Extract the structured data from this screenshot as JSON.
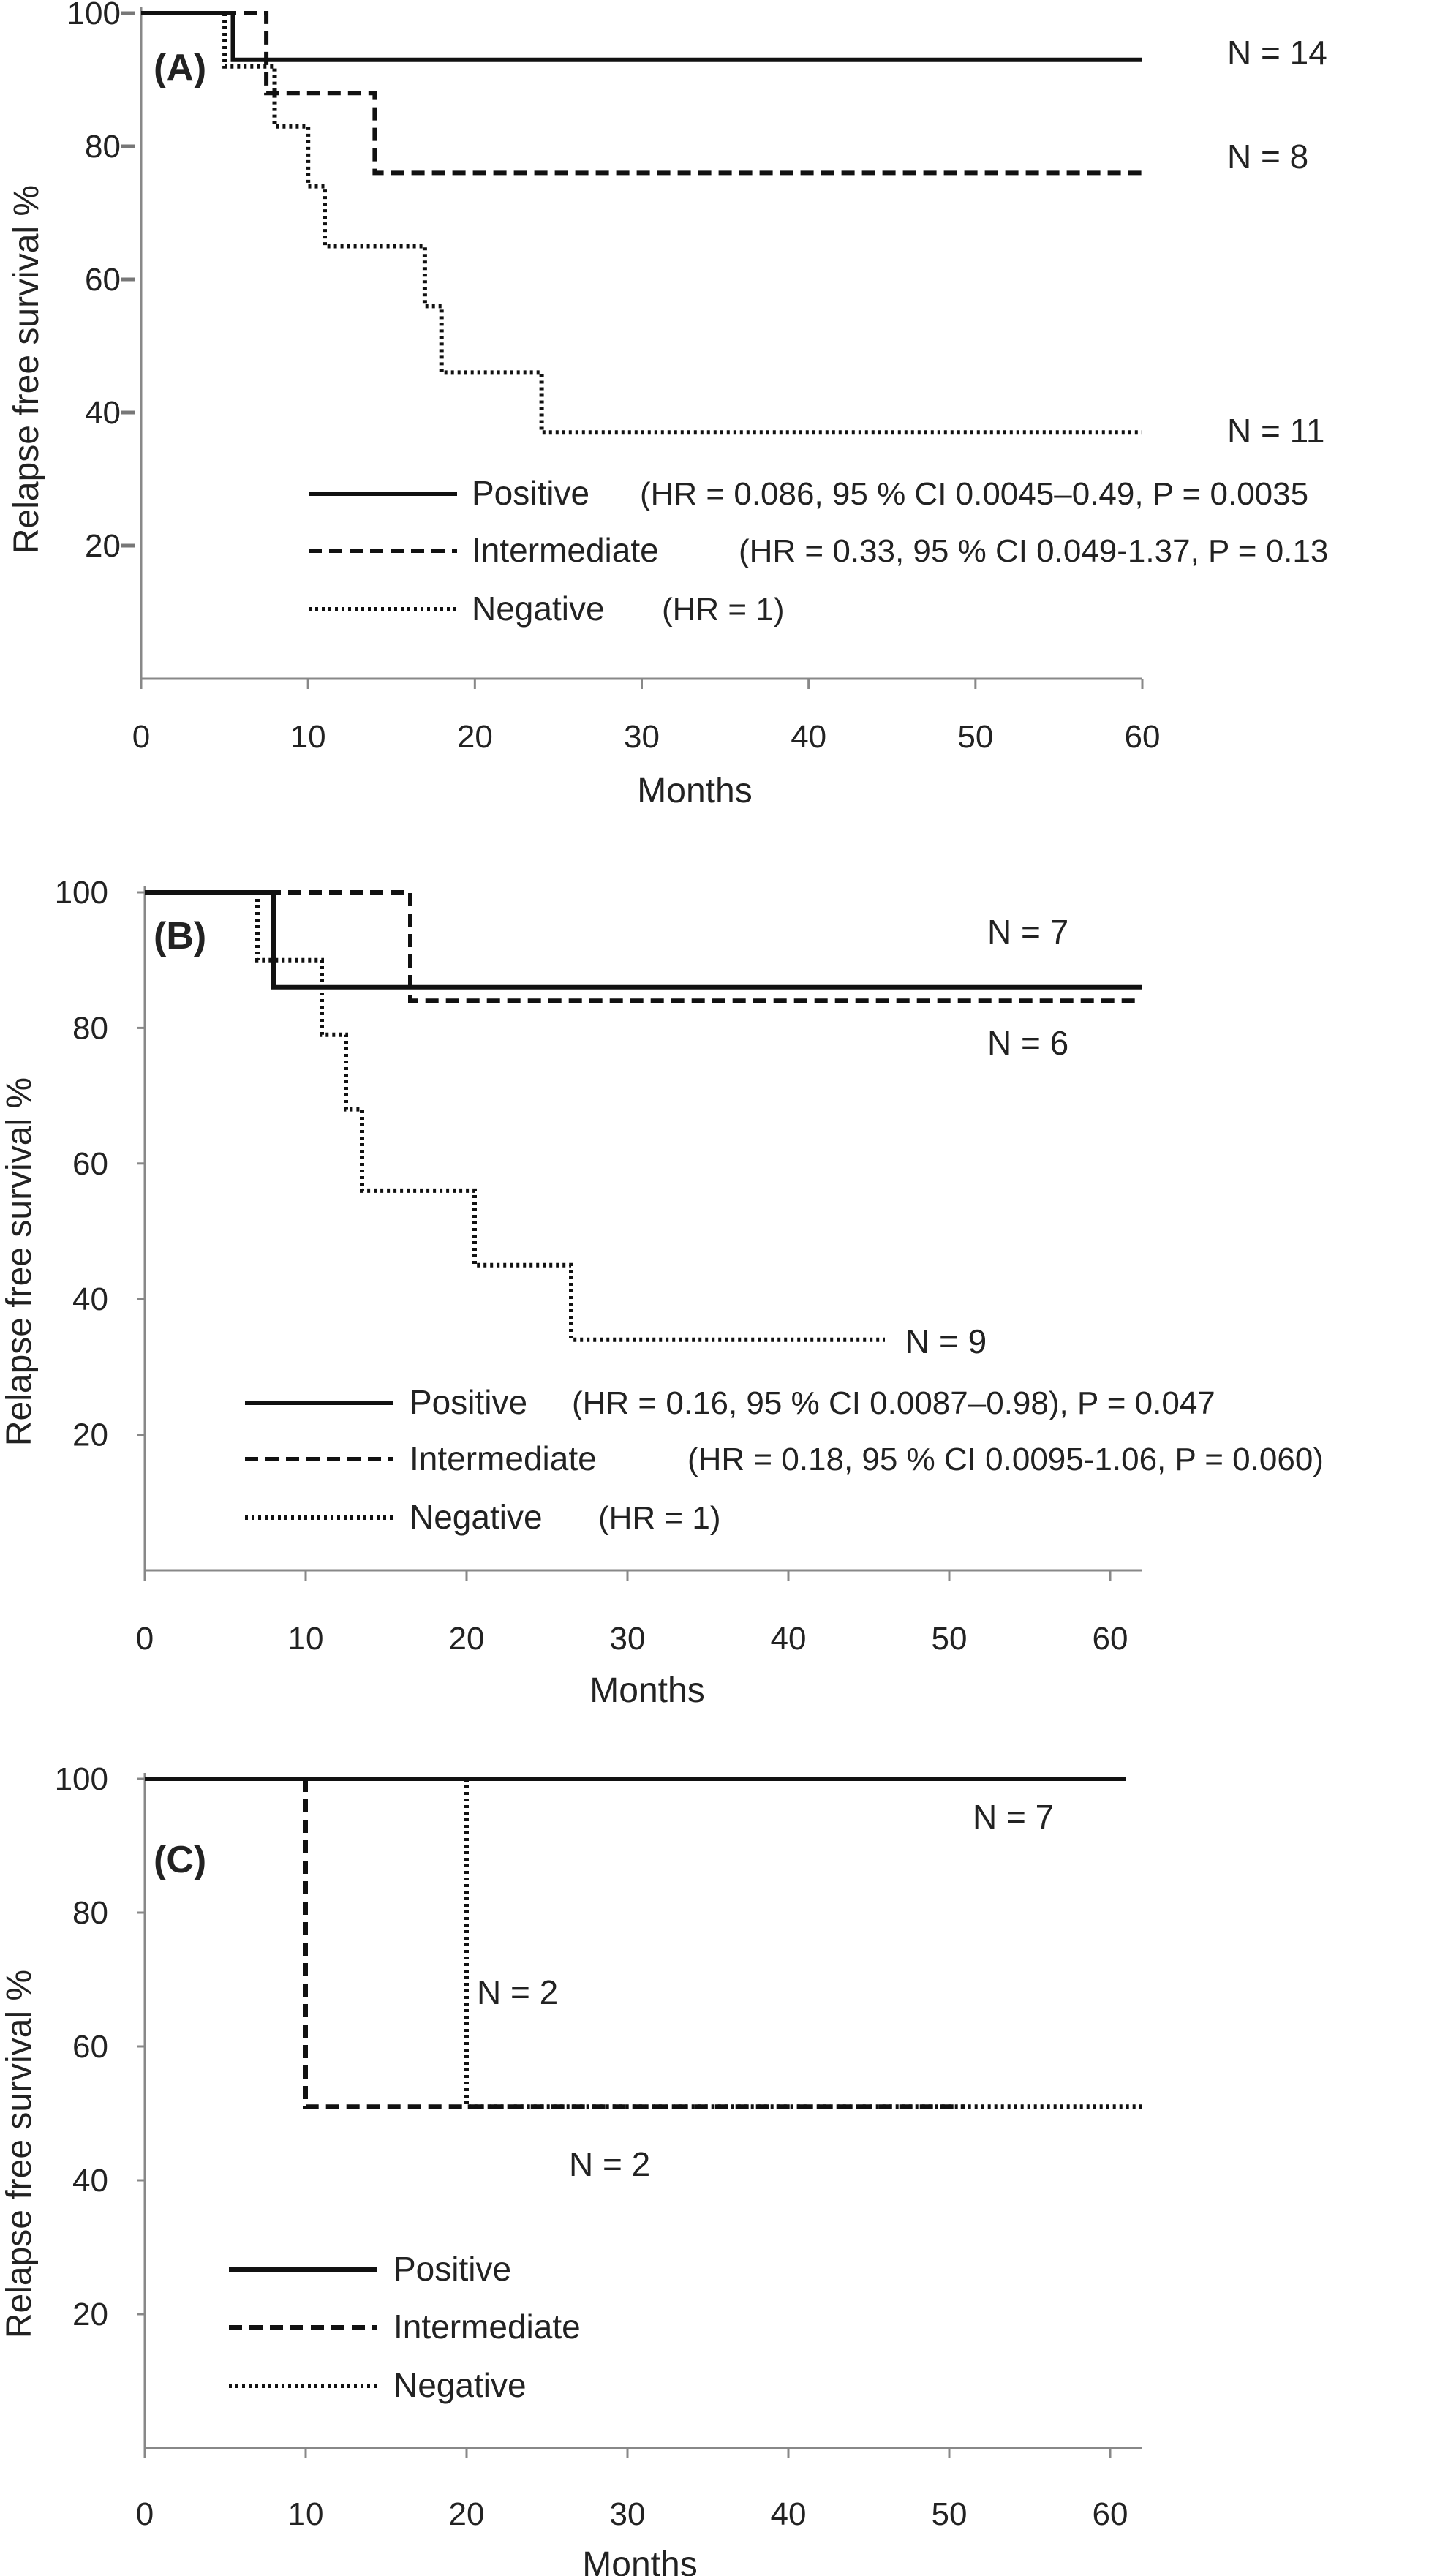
{
  "chart_data": [
    {
      "panel": "(A)",
      "type": "line",
      "line_shape": "step",
      "xlabel": "Months",
      "ylabel": "Relapse free survival %",
      "xlim": [
        0,
        60
      ],
      "ylim": [
        0,
        100
      ],
      "xticks": [
        "0",
        "10",
        "20",
        "30",
        "40",
        "50",
        "60"
      ],
      "yticks": [
        "20",
        "40",
        "60",
        "80",
        "100"
      ],
      "grid": false,
      "legend_position": "lower-right",
      "series": [
        {
          "name": "Positive",
          "style": "solid",
          "stat_text": "(HR = 0.086, 95 % CI 0.0045–0.49, P = 0.0035",
          "n_text": "N = 14",
          "points": [
            [
              0,
              100
            ],
            [
              5.5,
              100
            ],
            [
              5.5,
              93
            ],
            [
              60,
              93
            ]
          ]
        },
        {
          "name": "Intermediate",
          "style": "dashed",
          "stat_text": "(HR = 0.33, 95 % CI 0.049-1.37, P = 0.13",
          "n_text": "N = 8",
          "points": [
            [
              0,
              100
            ],
            [
              7.5,
              100
            ],
            [
              7.5,
              88
            ],
            [
              14,
              88
            ],
            [
              14,
              76
            ],
            [
              60,
              76
            ]
          ]
        },
        {
          "name": "Negative",
          "style": "dotted",
          "stat_text": "(HR = 1)",
          "n_text": "N = 11",
          "points": [
            [
              5,
              100
            ],
            [
              5,
              92
            ],
            [
              8,
              92
            ],
            [
              8,
              83
            ],
            [
              10,
              83
            ],
            [
              10,
              74
            ],
            [
              11,
              74
            ],
            [
              11,
              65
            ],
            [
              17,
              65
            ],
            [
              17,
              56
            ],
            [
              18,
              56
            ],
            [
              18,
              46
            ],
            [
              24,
              46
            ],
            [
              24,
              37
            ],
            [
              60,
              37
            ]
          ]
        }
      ]
    },
    {
      "panel": "(B)",
      "type": "line",
      "line_shape": "step",
      "xlabel": "Months",
      "ylabel": "Relapse free survival %",
      "xlim": [
        0,
        62
      ],
      "ylim": [
        0,
        100
      ],
      "xticks": [
        "0",
        "10",
        "20",
        "30",
        "40",
        "50",
        "60"
      ],
      "yticks": [
        "20",
        "40",
        "60",
        "80",
        "100"
      ],
      "grid": false,
      "legend_position": "lower-right",
      "series": [
        {
          "name": "Positive",
          "style": "solid",
          "stat_text": "(HR = 0.16, 95 % CI 0.0087–0.98), P = 0.047",
          "n_text": "N = 7",
          "points": [
            [
              0,
              100
            ],
            [
              8,
              100
            ],
            [
              8,
              86
            ],
            [
              62,
              86
            ]
          ]
        },
        {
          "name": "Intermediate",
          "style": "dashed",
          "stat_text": "(HR = 0.18, 95 % CI 0.0095-1.06, P = 0.060)",
          "n_text": "N = 6",
          "points": [
            [
              0,
              100
            ],
            [
              16.5,
              100
            ],
            [
              16.5,
              84
            ],
            [
              62,
              84
            ]
          ]
        },
        {
          "name": "Negative",
          "style": "dotted",
          "stat_text": "(HR = 1)",
          "n_text": "N = 9",
          "points": [
            [
              7,
              100
            ],
            [
              7,
              90
            ],
            [
              11,
              90
            ],
            [
              11,
              79
            ],
            [
              12.5,
              79
            ],
            [
              12.5,
              68
            ],
            [
              13.5,
              68
            ],
            [
              13.5,
              56
            ],
            [
              20.5,
              56
            ],
            [
              20.5,
              45
            ],
            [
              26.5,
              45
            ],
            [
              26.5,
              34
            ],
            [
              46,
              34
            ]
          ]
        }
      ]
    },
    {
      "panel": "(C)",
      "type": "line",
      "line_shape": "step",
      "xlabel": "Months",
      "ylabel": "Relapse free survival %",
      "xlim": [
        0,
        62
      ],
      "ylim": [
        0,
        100
      ],
      "xticks": [
        "0",
        "10",
        "20",
        "30",
        "40",
        "50",
        "60"
      ],
      "yticks": [
        "20",
        "40",
        "60",
        "80",
        "100"
      ],
      "grid": false,
      "legend_position": "lower-left",
      "series": [
        {
          "name": "Positive",
          "style": "solid",
          "stat_text": "",
          "n_text": "N = 7",
          "points": [
            [
              0,
              100
            ],
            [
              61,
              100
            ]
          ]
        },
        {
          "name": "Intermediate",
          "style": "dashed",
          "stat_text": "",
          "n_text": "N = 2",
          "points": [
            [
              10,
              100
            ],
            [
              10,
              51
            ],
            [
              51,
              51
            ]
          ]
        },
        {
          "name": "Negative",
          "style": "dotted",
          "stat_text": "",
          "n_text": "N = 2",
          "points": [
            [
              20,
              100
            ],
            [
              20,
              51
            ],
            [
              62,
              51
            ]
          ]
        }
      ]
    }
  ]
}
